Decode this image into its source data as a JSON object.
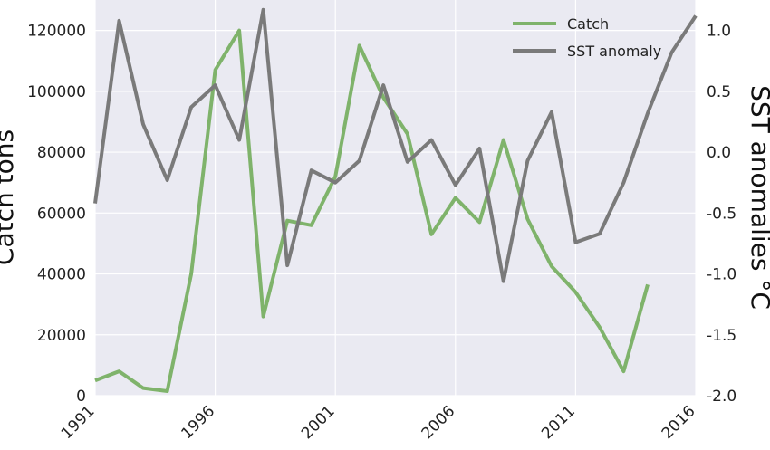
{
  "chart_data": {
    "type": "line",
    "title": "",
    "xlabel": "",
    "ylabel_left": "Catch tons",
    "ylabel_right": "SST anomalies °C",
    "xlim": [
      1991,
      2016
    ],
    "ylim_left": [
      0,
      130000
    ],
    "ylim_right": [
      -2.0,
      1.25
    ],
    "x_ticks": [
      1991,
      1996,
      2001,
      2006,
      2011,
      2016
    ],
    "y_ticks_left": [
      0,
      20000,
      40000,
      60000,
      80000,
      100000,
      120000
    ],
    "y_ticks_right": [
      "1.0",
      "0.5",
      "0.0",
      "-0.5",
      "-1.0",
      "-1.5",
      "-2.0"
    ],
    "grid": true,
    "legend_position": "top-right",
    "series": [
      {
        "name": "Catch",
        "axis": "left",
        "color": "#7fb36b",
        "x": [
          1991,
          1992,
          1993,
          1994,
          1995,
          1996,
          1997,
          1998,
          1999,
          2000,
          2001,
          2002,
          2003,
          2004,
          2005,
          2006,
          2007,
          2008,
          2009,
          2010,
          2011,
          2012,
          2013,
          2014
        ],
        "y": [
          5000,
          8000,
          2500,
          1500,
          40000,
          107000,
          120000,
          26000,
          57500,
          56000,
          72000,
          115000,
          98000,
          86000,
          53000,
          65000,
          57000,
          84000,
          58000,
          42500,
          34000,
          22500,
          8000,
          36500
        ]
      },
      {
        "name": "SST anomaly",
        "axis": "right",
        "color": "#7a7a7a",
        "x": [
          1991,
          1992,
          1993,
          1994,
          1995,
          1996,
          1997,
          1998,
          1999,
          2000,
          2001,
          2002,
          2003,
          2004,
          2005,
          2006,
          2007,
          2008,
          2009,
          2010,
          2011,
          2012,
          2013,
          2014,
          2015,
          2016
        ],
        "y": [
          -0.42,
          1.08,
          0.23,
          -0.23,
          0.37,
          0.55,
          0.1,
          1.17,
          -0.93,
          -0.15,
          -0.25,
          -0.07,
          0.55,
          -0.08,
          0.1,
          -0.27,
          0.03,
          -1.06,
          -0.07,
          0.33,
          -0.74,
          -0.67,
          -0.25,
          0.32,
          0.82,
          1.12
        ]
      }
    ]
  }
}
